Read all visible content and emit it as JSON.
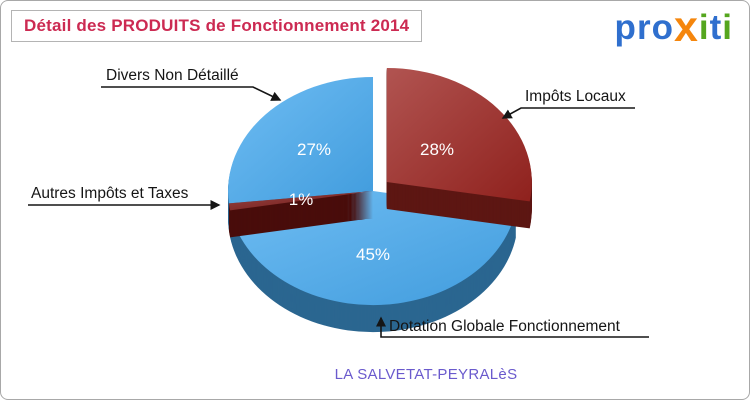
{
  "page": {
    "title": "Détail des PRODUITS de Fonctionnement 2014",
    "title_color": "#cc2a52",
    "footer_city": "LA SALVETAT-PEYRALèS",
    "footer_color": "#6a5acd"
  },
  "logo": {
    "name": "proxiti",
    "letters": [
      {
        "ch": "p",
        "color": "#2f6fce"
      },
      {
        "ch": "r",
        "color": "#2f6fce"
      },
      {
        "ch": "o",
        "color": "#2f6fce"
      },
      {
        "ch": "x",
        "color": "#f5860d"
      },
      {
        "ch": "i",
        "color": "#55a61e"
      },
      {
        "ch": "t",
        "color": "#2f6fce"
      },
      {
        "ch": "i",
        "color": "#55a61e"
      }
    ]
  },
  "chart_data": {
    "type": "pie",
    "title": "Détail des PRODUITS de Fonctionnement 2014",
    "style": "3d-exploded",
    "start_angle": -90,
    "direction": "clockwise",
    "legend_position": "callouts",
    "slices": [
      {
        "label": "Impôts Locaux",
        "value": 28,
        "pct_label": "28%",
        "color": "#9b2420",
        "explode": 18,
        "label_r": 0.45
      },
      {
        "label": "Dotation Globale Fonctionnement",
        "value": 45,
        "pct_label": "45%",
        "color": "#47aaf0",
        "explode": 0
      },
      {
        "label": "Autres Impôts et Taxes",
        "value": 1,
        "pct_label": "1%",
        "color": "#7a1512",
        "explode": 0,
        "label_r": 0.5
      },
      {
        "label": "Divers Non Détaillé",
        "value": 27,
        "pct_label": "27%",
        "color": "#47aaf0",
        "explode": 0
      }
    ]
  }
}
